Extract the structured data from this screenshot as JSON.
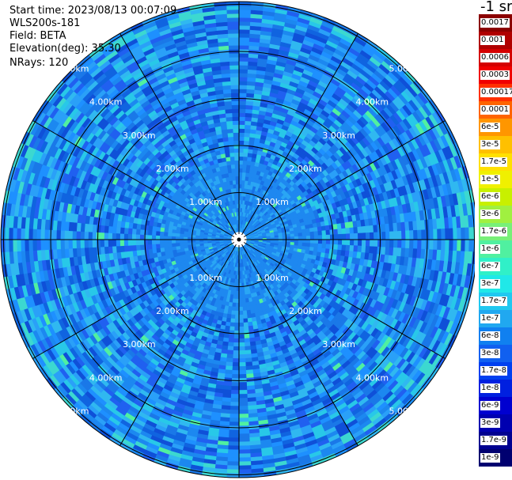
{
  "info": {
    "start_time": "Start time: 2023/08/13 00:07:09",
    "device": "WLS200s-181",
    "field": "Field: BETA",
    "elevation": "Elevation(deg): 35.30",
    "nrays": "NRays: 120"
  },
  "chart_data": {
    "type": "heatmap",
    "projection": "polar-ppi",
    "field": "BETA",
    "unit_label": "-1 sr",
    "range_rings_km": [
      1,
      2,
      3,
      4,
      5
    ],
    "ring_labels": [
      "1.00km",
      "2.00km",
      "3.00km",
      "4.00km",
      "5.00km"
    ],
    "spokes_deg": [
      0,
      30,
      60,
      90,
      120,
      150,
      180,
      210,
      240,
      270,
      300,
      330
    ],
    "n_rays": 120,
    "colorbar": {
      "labels": [
        "0.0017",
        "0.001",
        "0.0006",
        "0.0003",
        "0.00017",
        "0.0001",
        "6e-5",
        "3e-5",
        "1.7e-5",
        "1e-5",
        "6e-6",
        "3e-6",
        "1.7e-6",
        "1e-6",
        "6e-7",
        "3e-7",
        "1.7e-7",
        "1e-7",
        "6e-8",
        "3e-8",
        "1.7e-8",
        "1e-8",
        "6e-9",
        "3e-9",
        "1.7e-9",
        "1e-9"
      ],
      "colors": [
        "#8b0000",
        "#b00000",
        "#d40000",
        "#f00000",
        "#ff3000",
        "#ff6400",
        "#ff9600",
        "#ffc000",
        "#ffe000",
        "#f0f000",
        "#c8f000",
        "#a0f040",
        "#78f078",
        "#50f0a0",
        "#30f0c8",
        "#20e8e8",
        "#20c8f0",
        "#20a8f0",
        "#1080f0",
        "#1060f0",
        "#0040f0",
        "#0020e0",
        "#0000d0",
        "#0000b0",
        "#000090",
        "#000070"
      ]
    }
  }
}
